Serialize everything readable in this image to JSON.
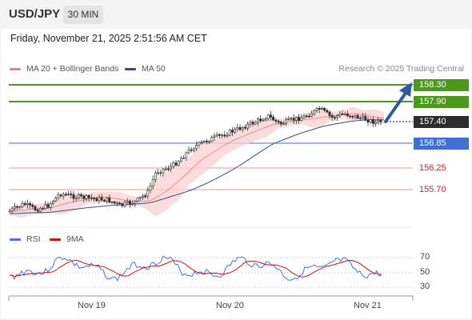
{
  "header": {
    "pair": "USD/JPY",
    "timeframe": "30 MIN"
  },
  "datetime": "Friday, November 21, 2025 2:51:56 AM CET",
  "legend": {
    "bollinger": {
      "label": "MA 20 + Bollinger Bands",
      "color": "#f08080"
    },
    "ma50": {
      "label": "MA 50",
      "color": "#2e4f8f"
    },
    "credit": "Research © 2025 Trading Central"
  },
  "levels": [
    {
      "value": "158.30",
      "kind": "resistance",
      "color": "#4a9a1a"
    },
    {
      "value": "157.90",
      "kind": "resistance",
      "color": "#4a9a1a"
    },
    {
      "value": "157.40",
      "kind": "current",
      "color": "#333333"
    },
    {
      "value": "156.85",
      "kind": "pivot",
      "color": "#3f6fd6"
    },
    {
      "value": "156.25",
      "kind": "support",
      "color": "#cc2222"
    },
    {
      "value": "155.70",
      "kind": "support",
      "color": "#cc2222"
    }
  ],
  "rsi": {
    "legend_rsi": "RSI",
    "legend_9ma": "9MA",
    "rsi_color": "#4a72d8",
    "ma_color": "#cc1111",
    "ticks": [
      "70",
      "50",
      "30"
    ]
  },
  "x_axis": [
    "Nov 19",
    "Nov 20",
    "Nov 21"
  ]
}
